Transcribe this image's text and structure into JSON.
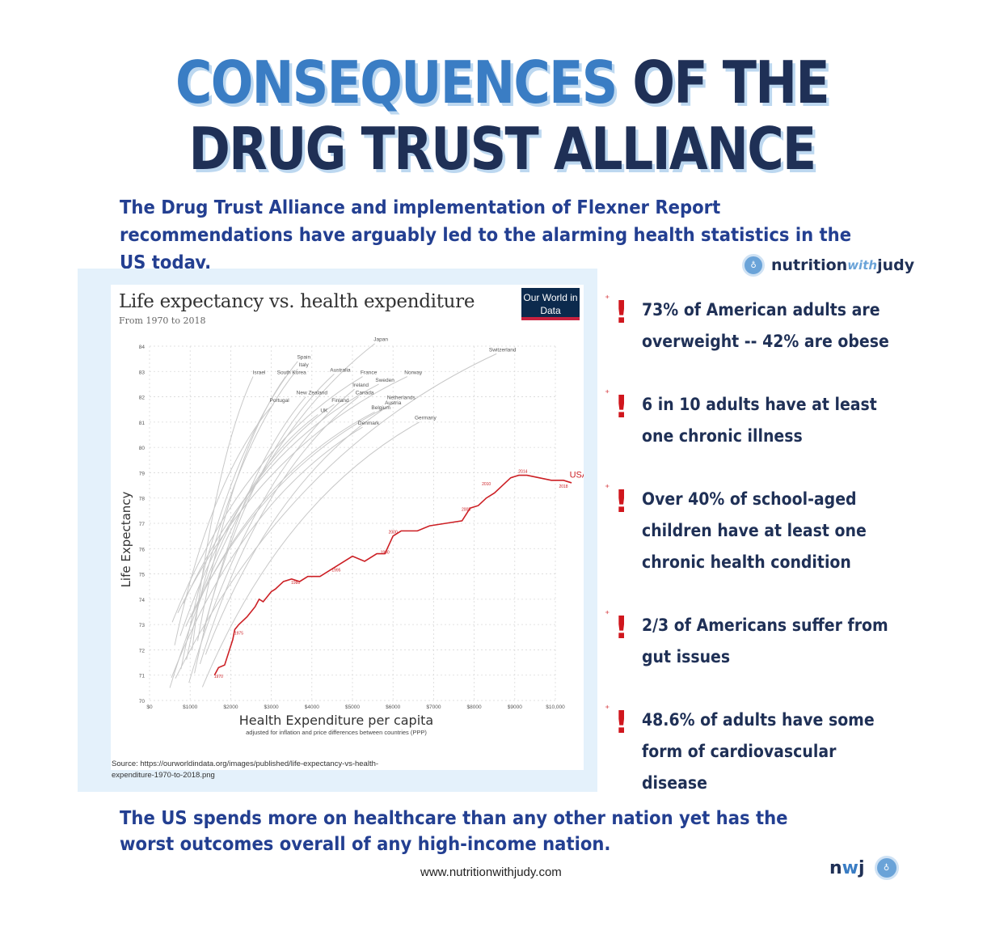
{
  "header": {
    "title_line1_blue": "CONSEQUENCES",
    "title_line1_dark": " OF THE",
    "title_line2": "DRUG TRUST ALLIANCE",
    "subtitle": "The Drug Trust Alliance and implementation of Flexner Report recommendations have arguably led to the alarming health statistics in the US today."
  },
  "brand": {
    "name_a": "nutrition",
    "name_with": "with",
    "name_b": "judy",
    "logo_icon": "nwj-circle-logo"
  },
  "chart_data": {
    "type": "line",
    "title": "Life expectancy vs. health expenditure",
    "subtitle": "From 1970 to 2018",
    "badge": "Our World in Data",
    "xlabel": "Health Expenditure per capita",
    "xlabel_note": "adjusted for inflation and price differences between countries (PPP)",
    "ylabel": "Life Expectancy",
    "xlim": [
      0,
      10000
    ],
    "ylim": [
      70,
      84
    ],
    "x_ticks": [
      "$0",
      "$1000",
      "$2000",
      "$3000",
      "$4000",
      "$5000",
      "$6000",
      "$7000",
      "$8000",
      "$9000",
      "$10,000"
    ],
    "y_ticks": [
      "70",
      "71",
      "72",
      "73",
      "74",
      "75",
      "76",
      "77",
      "78",
      "79",
      "80",
      "81",
      "82",
      "83",
      "84"
    ],
    "grid": true,
    "highlight_color": "#cc1f24",
    "other_color": "#c8c8c8",
    "countries": [
      {
        "label": "Japan",
        "x": 5700,
        "y": 84.2
      },
      {
        "label": "Switzerland",
        "x": 8700,
        "y": 83.8
      },
      {
        "label": "Spain",
        "x": 3800,
        "y": 83.5
      },
      {
        "label": "Italy",
        "x": 3800,
        "y": 83.2
      },
      {
        "label": "Israel",
        "x": 2700,
        "y": 82.9
      },
      {
        "label": "South Korea",
        "x": 3500,
        "y": 82.9
      },
      {
        "label": "Australia",
        "x": 4700,
        "y": 83.0
      },
      {
        "label": "France",
        "x": 5400,
        "y": 82.9
      },
      {
        "label": "Norway",
        "x": 6500,
        "y": 82.9
      },
      {
        "label": "Sweden",
        "x": 5800,
        "y": 82.6
      },
      {
        "label": "Ireland",
        "x": 5200,
        "y": 82.4
      },
      {
        "label": "New Zealand",
        "x": 4000,
        "y": 82.1
      },
      {
        "label": "Canada",
        "x": 5300,
        "y": 82.1
      },
      {
        "label": "Netherlands",
        "x": 6200,
        "y": 81.9
      },
      {
        "label": "Portugal",
        "x": 3200,
        "y": 81.8
      },
      {
        "label": "Finland",
        "x": 4700,
        "y": 81.8
      },
      {
        "label": "Austria",
        "x": 6000,
        "y": 81.7
      },
      {
        "label": "Belgium",
        "x": 5700,
        "y": 81.5
      },
      {
        "label": "UK",
        "x": 4300,
        "y": 81.4
      },
      {
        "label": "Germany",
        "x": 6800,
        "y": 81.1
      },
      {
        "label": "Denmark",
        "x": 5400,
        "y": 80.9
      }
    ],
    "usa": {
      "name": "USA",
      "labels": [
        {
          "label": "1970",
          "x": 1700,
          "y": 70.9
        },
        {
          "label": "1975",
          "x": 2200,
          "y": 72.6
        },
        {
          "label": "1980",
          "x": 3600,
          "y": 74.6
        },
        {
          "label": "1990",
          "x": 5800,
          "y": 75.8
        },
        {
          "label": "1995",
          "x": 4600,
          "y": 75.1
        },
        {
          "label": "2000",
          "x": 6000,
          "y": 76.6
        },
        {
          "label": "2005",
          "x": 7800,
          "y": 77.5
        },
        {
          "label": "2010",
          "x": 8300,
          "y": 78.5
        },
        {
          "label": "2014",
          "x": 9200,
          "y": 79.0
        },
        {
          "label": "2018",
          "x": 10200,
          "y": 78.4
        }
      ],
      "points": [
        [
          1600,
          71.0
        ],
        [
          1700,
          71.3
        ],
        [
          1850,
          71.4
        ],
        [
          1950,
          71.9
        ],
        [
          2050,
          72.4
        ],
        [
          2100,
          72.8
        ],
        [
          2200,
          73.0
        ],
        [
          2400,
          73.3
        ],
        [
          2600,
          73.7
        ],
        [
          2700,
          74.0
        ],
        [
          2800,
          73.9
        ],
        [
          3000,
          74.3
        ],
        [
          3100,
          74.4
        ],
        [
          3300,
          74.7
        ],
        [
          3500,
          74.8
        ],
        [
          3700,
          74.7
        ],
        [
          3900,
          74.9
        ],
        [
          4200,
          74.9
        ],
        [
          4400,
          75.1
        ],
        [
          4700,
          75.4
        ],
        [
          5000,
          75.7
        ],
        [
          5300,
          75.5
        ],
        [
          5600,
          75.8
        ],
        [
          5800,
          75.8
        ],
        [
          6000,
          76.5
        ],
        [
          6200,
          76.7
        ],
        [
          6600,
          76.7
        ],
        [
          6900,
          76.9
        ],
        [
          7300,
          77.0
        ],
        [
          7700,
          77.1
        ],
        [
          7900,
          77.6
        ],
        [
          8100,
          77.7
        ],
        [
          8300,
          78.0
        ],
        [
          8500,
          78.2
        ],
        [
          8700,
          78.5
        ],
        [
          8900,
          78.8
        ],
        [
          9100,
          78.9
        ],
        [
          9300,
          78.9
        ],
        [
          9600,
          78.8
        ],
        [
          9900,
          78.7
        ],
        [
          10200,
          78.7
        ],
        [
          10400,
          78.6
        ]
      ]
    },
    "source": "Source: https://ourworldindata.org/images/published/life-expectancy-vs-health-expenditure-1970-to-2018.png"
  },
  "facts": [
    {
      "icon": "exclamation-alarm-icon",
      "text": "73% of American adults are overweight -- 42% are obese"
    },
    {
      "icon": "exclamation-alarm-icon",
      "text": "6 in 10 adults have at least one chronic illness"
    },
    {
      "icon": "exclamation-alarm-icon",
      "text": "Over 40% of school-aged children have at least one chronic health condition"
    },
    {
      "icon": "exclamation-alarm-icon",
      "text": "2/3 of Americans suffer from gut issues"
    },
    {
      "icon": "exclamation-alarm-icon",
      "text": "48.6% of adults have some form of cardiovascular disease"
    }
  ],
  "footer": {
    "statement": "The US spends more on healthcare than any other nation yet has the worst outcomes overall of any high-income nation.",
    "url": "www.nutritionwithjudy.com",
    "mark_n": "n",
    "mark_w": "w",
    "mark_j": "j"
  },
  "colors": {
    "accent_blue": "#3a7dc4",
    "navy": "#1f3056",
    "alert_red": "#d0161d"
  }
}
